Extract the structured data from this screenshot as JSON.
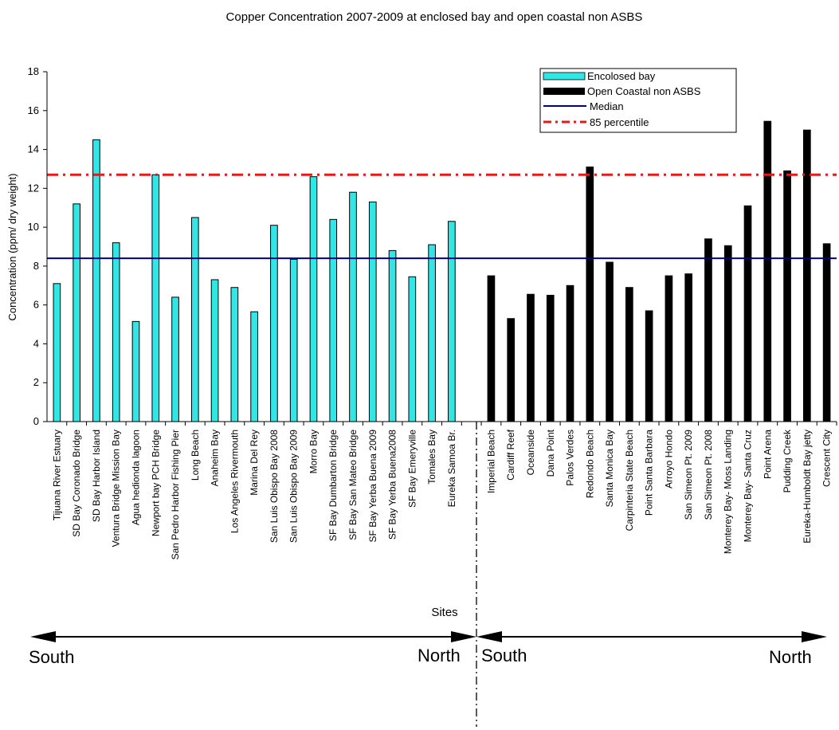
{
  "chart_data": {
    "type": "bar",
    "title": "Copper Concentration 2007-2009 at enclosed bay and open coastal non ASBS",
    "ylabel": "Concentration (ppm/ dry weight)",
    "xlabel": "Sites",
    "ylim": [
      0,
      18
    ],
    "yticks": [
      0,
      2,
      4,
      6,
      8,
      10,
      12,
      14,
      16,
      18
    ],
    "grid": false,
    "legend_position": "top-right",
    "series": [
      {
        "name": "Encolosed bay",
        "color": "#33e6e6",
        "categories": [
          "Tijuana River Estuary",
          "SD Bay Coronado Bridge",
          "SD Bay Harbor Island",
          "Ventura Bridge Mission Bay",
          "Agua hedionda lagoon",
          "Newport bay PCH Bridge",
          "San Pedro Harbor  Fishing Pier",
          "Long Beach",
          "Anaheim Bay",
          "Los Angeles Rivermouth",
          "Marina Del Rey",
          "San Luis Obispo Bay 2008",
          "San Luis Obispo Bay 2009",
          "Morro Bay",
          "SF Bay Dumbarton Bridge",
          "SF Bay San Mateo Bridge",
          "SF Bay Yerba Buena 2009",
          "SF Bay Yerba Buena2008",
          "SF Bay Emeryville",
          "Tomales Bay",
          "Eureka Samoa Br."
        ],
        "values": [
          7.1,
          11.2,
          14.5,
          9.2,
          5.15,
          12.7,
          6.4,
          10.5,
          7.3,
          6.9,
          5.65,
          10.1,
          8.35,
          12.6,
          10.4,
          11.8,
          11.3,
          8.8,
          7.45,
          9.1,
          10.3
        ]
      },
      {
        "name": "Open Coastal non ASBS",
        "color": "#000000",
        "categories": [
          "Imperial Beach",
          "Cardiff Reef",
          "Oceanside",
          "Dana Point",
          "Palos Verdes",
          "Redondo Beach",
          "Santa Monica Bay",
          "Carpinteria State Beach",
          "Point Santa Barbara",
          "Arroyo Hondo",
          "San Simeon Pt. 2009",
          "San Simeon Pt. 2008",
          "Monterey Bay- Moss Landing",
          "Monterey Bay- Santa  Cruz",
          "Point Arena",
          "Pudding Creek",
          "Eureka-Humboldt Bay jetty",
          "Crescent City"
        ],
        "values": [
          7.5,
          5.3,
          6.55,
          6.5,
          7.0,
          13.1,
          8.2,
          6.9,
          5.7,
          7.5,
          7.6,
          9.4,
          9.05,
          11.1,
          15.45,
          12.9,
          15.0,
          9.15
        ]
      }
    ],
    "reference_lines": [
      {
        "name": "Median",
        "value": 8.4,
        "color": "#000080",
        "style": "solid"
      },
      {
        "name": "85 percentile",
        "value": 12.7,
        "color": "#e31a1c",
        "style": "dash-dot"
      }
    ],
    "annotations": {
      "left_from": "South",
      "left_to": "North",
      "right_from": "South",
      "right_to": "North"
    }
  }
}
